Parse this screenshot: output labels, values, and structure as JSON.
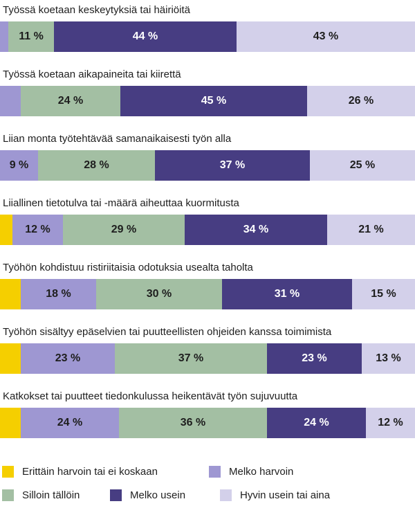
{
  "chart_data": {
    "type": "bar",
    "orientation": "horizontal-stacked-100",
    "categories": [
      "Työssä koetaan keskeytyksiä tai häiriöitä",
      "Työssä koetaan aikapaineita tai kiirettä",
      "Liian monta työtehtävää samanaikaisesti työn alla",
      "Liiallinen tietotulva tai -määrä aiheuttaa kuormitusta",
      "Työhön kohdistuu ristiriitaisia odotuksia usealta taholta",
      "Työhön sisältyy epäselvien tai puutteellisten ohjeiden kanssa toimimista",
      "Katkokset tai puutteet tiedonkulussa heikentävät työn sujuvuutta"
    ],
    "series": [
      {
        "name": "Erittäin harvoin tai ei koskaan",
        "color": "#f5cf00",
        "text_color": "#1e1e1e",
        "values": [
          0,
          0,
          0,
          3,
          5,
          5,
          5
        ],
        "labels": [
          "",
          "",
          "",
          "",
          "",
          "",
          ""
        ]
      },
      {
        "name": "Melko harvoin",
        "color": "#9e97d2",
        "text_color": "#1e1e1e",
        "values": [
          2,
          5,
          9,
          12,
          18,
          23,
          24
        ],
        "labels": [
          "",
          "",
          "9 %",
          "12 %",
          "18 %",
          "23 %",
          "24 %"
        ]
      },
      {
        "name": "Silloin tällöin",
        "color": "#a3bfa3",
        "text_color": "#1e1e1e",
        "values": [
          11,
          24,
          28,
          29,
          30,
          37,
          36
        ],
        "labels": [
          "11 %",
          "24 %",
          "28 %",
          "29 %",
          "30 %",
          "37 %",
          "36 %"
        ]
      },
      {
        "name": "Melko usein",
        "color": "#473d82",
        "text_color": "#ffffff",
        "values": [
          44,
          45,
          37,
          34,
          31,
          23,
          24
        ],
        "labels": [
          "44 %",
          "45 %",
          "37 %",
          "34 %",
          "31 %",
          "23 %",
          "24 %"
        ]
      },
      {
        "name": "Hyvin usein tai aina",
        "color": "#d3d0ea",
        "text_color": "#1e1e1e",
        "values": [
          43,
          26,
          25,
          21,
          15,
          13,
          12
        ],
        "labels": [
          "43 %",
          "26 %",
          "25 %",
          "21 %",
          "15 %",
          "13 %",
          "12 %"
        ]
      }
    ],
    "xlim": [
      0,
      100
    ],
    "legend_position": "bottom"
  }
}
